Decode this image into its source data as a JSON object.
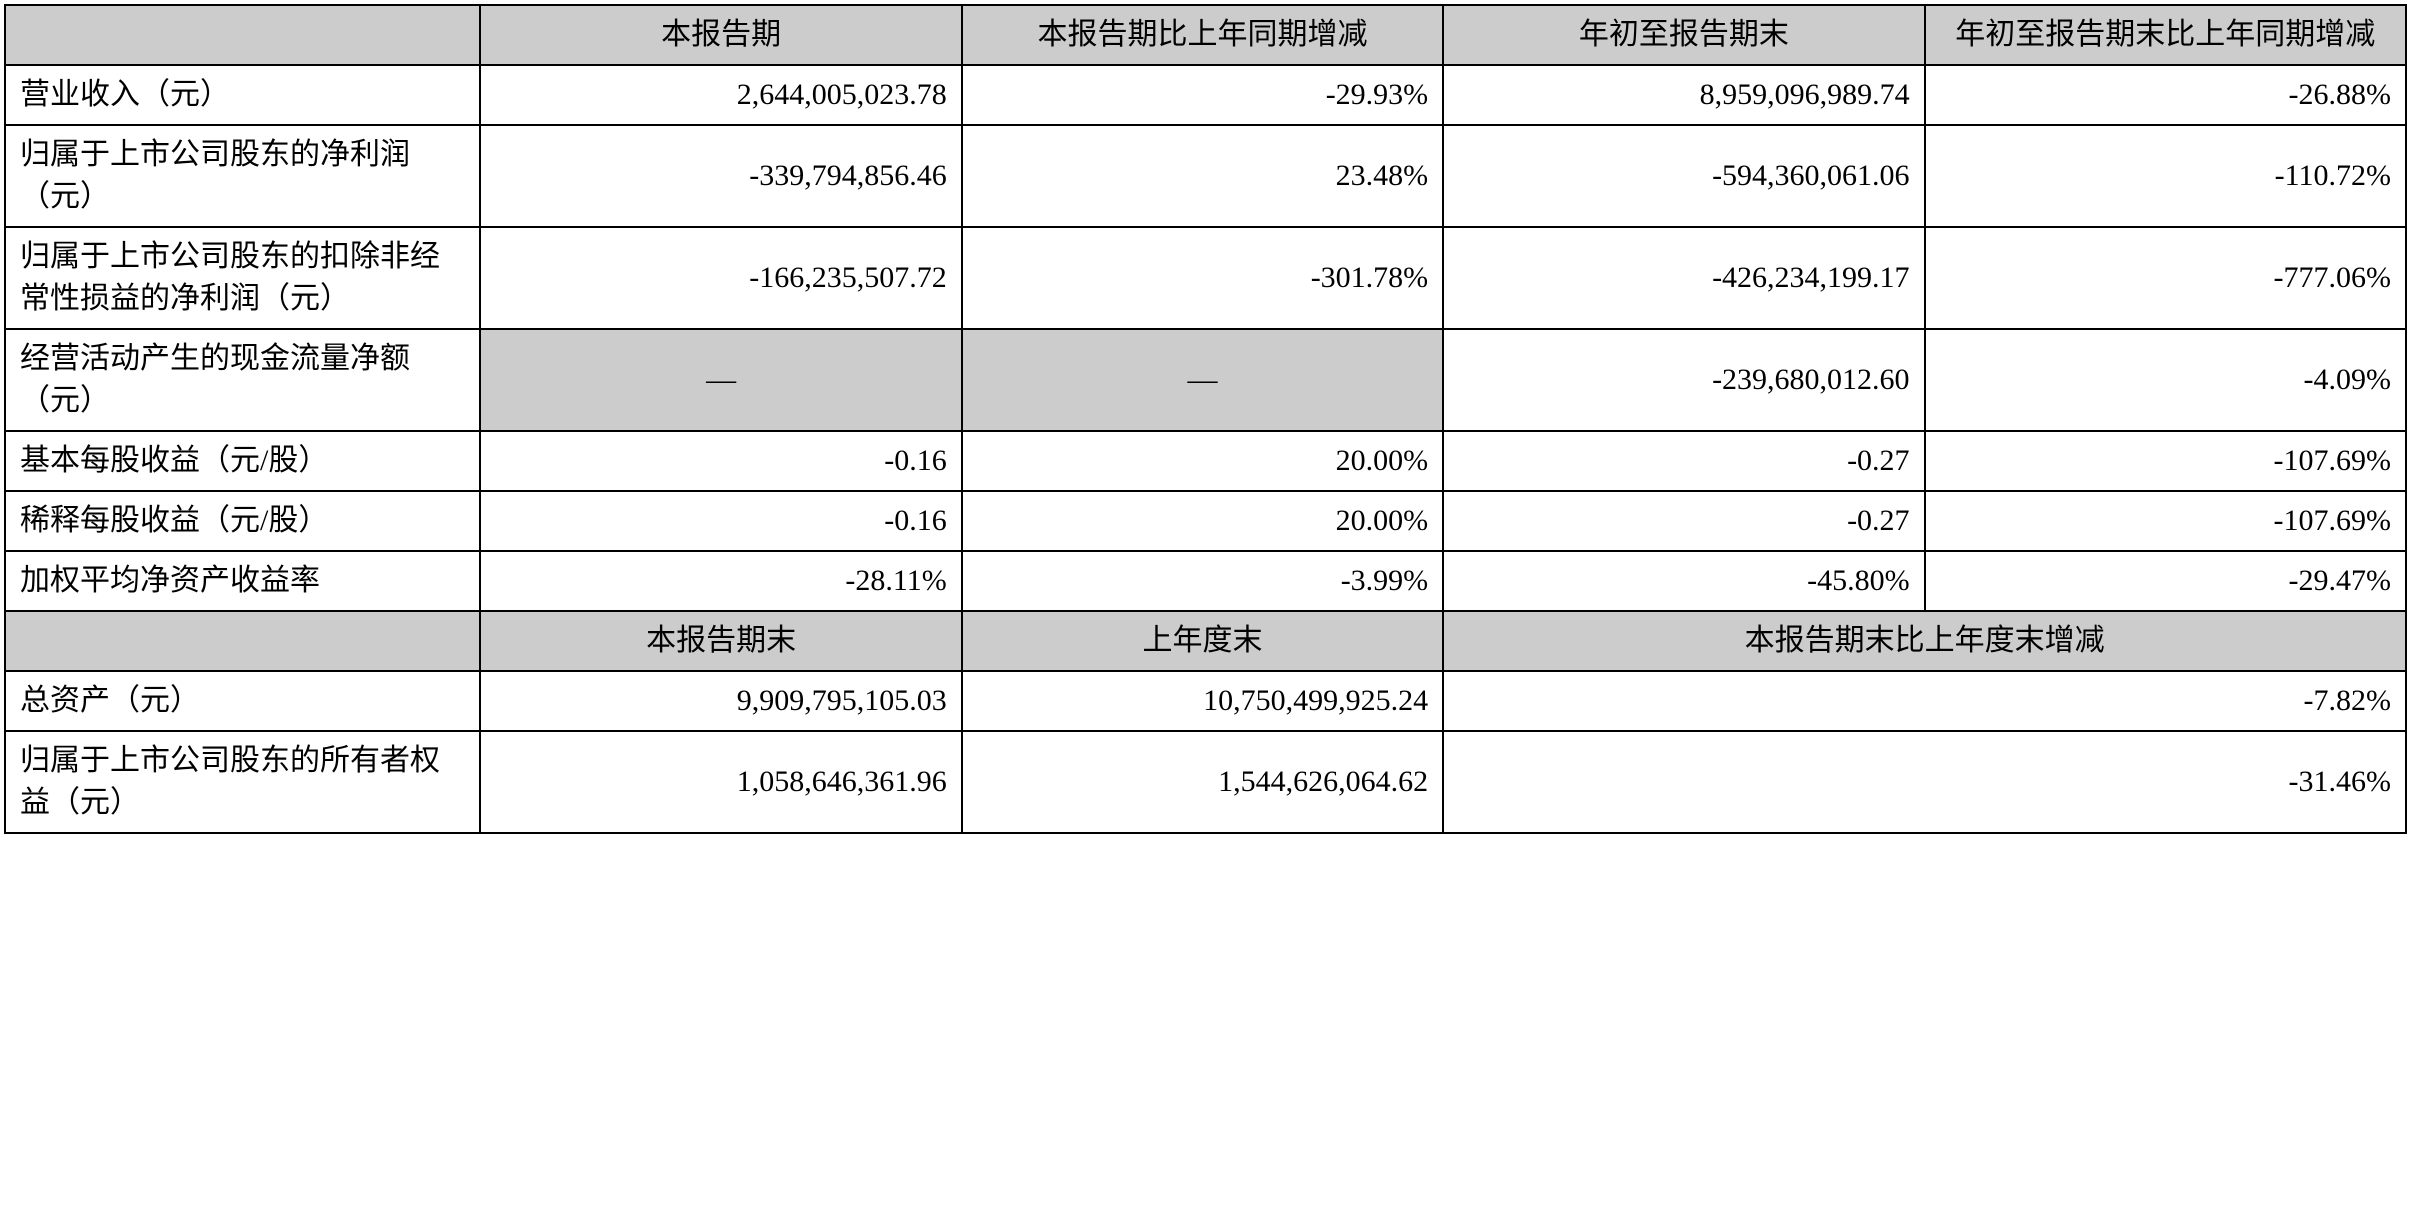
{
  "table": {
    "header1": {
      "col0": "",
      "col1": "本报告期",
      "col2": "本报告期比上年同期增减",
      "col3": "年初至报告期末",
      "col4": "年初至报告期末比上年同期增减"
    },
    "rows1": [
      {
        "label": "营业收入（元）",
        "v1": "2,644,005,023.78",
        "v2": "-29.93%",
        "v3": "8,959,096,989.74",
        "v4": "-26.88%"
      },
      {
        "label": "归属于上市公司股东的净利润（元）",
        "v1": "-339,794,856.46",
        "v2": "23.48%",
        "v3": "-594,360,061.06",
        "v4": "-110.72%"
      },
      {
        "label": "归属于上市公司股东的扣除非经常性损益的净利润（元）",
        "v1": "-166,235,507.72",
        "v2": "-301.78%",
        "v3": "-426,234,199.17",
        "v4": "-777.06%"
      },
      {
        "label": "经营活动产生的现金流量净额（元）",
        "v1": "—",
        "v2": "—",
        "v3": "-239,680,012.60",
        "v4": "-4.09%",
        "v1gray": true,
        "v2gray": true
      },
      {
        "label": "基本每股收益（元/股）",
        "v1": "-0.16",
        "v2": "20.00%",
        "v3": "-0.27",
        "v4": "-107.69%"
      },
      {
        "label": "稀释每股收益（元/股）",
        "v1": "-0.16",
        "v2": "20.00%",
        "v3": "-0.27",
        "v4": "-107.69%"
      },
      {
        "label": "加权平均净资产收益率",
        "v1": "-28.11%",
        "v2": "-3.99%",
        "v3": "-45.80%",
        "v4": "-29.47%"
      }
    ],
    "header2": {
      "col0": "",
      "col1": "本报告期末",
      "col2": "上年度末",
      "col34": "本报告期末比上年度末增减"
    },
    "rows2": [
      {
        "label": "总资产（元）",
        "v1": "9,909,795,105.03",
        "v2": "10,750,499,925.24",
        "v34": "-7.82%"
      },
      {
        "label": "归属于上市公司股东的所有者权益（元）",
        "v1": "1,058,646,361.96",
        "v2": "1,544,626,064.62",
        "v34": "-31.46%"
      }
    ]
  },
  "style": {
    "background_color": "#ffffff",
    "header_bg_color": "#cccccc",
    "border_color": "#000000",
    "border_width": 2,
    "font_family": "SimSun",
    "font_size": 30,
    "col_widths": [
      "19.8%",
      "20.05%",
      "20.05%",
      "20.05%",
      "20.05%"
    ]
  }
}
